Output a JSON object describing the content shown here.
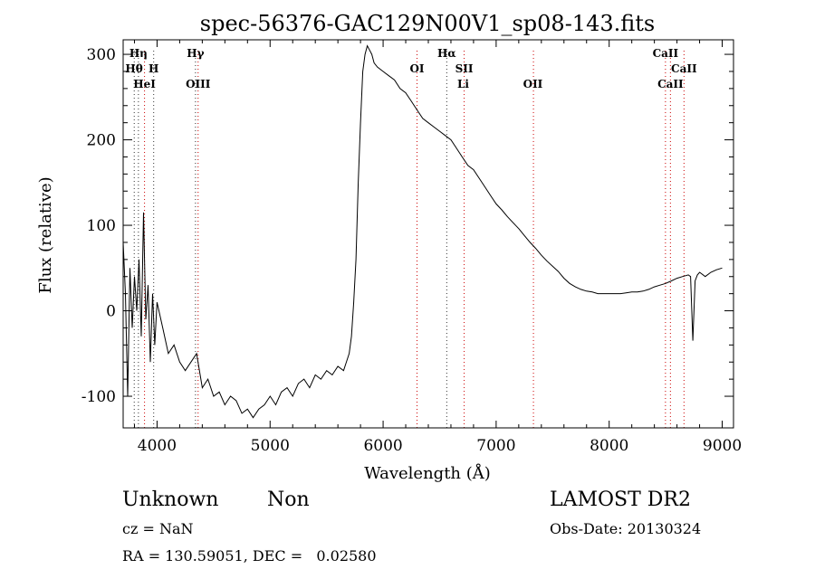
{
  "chart_data": {
    "type": "line",
    "title": "spec-56376-GAC129N00V1_sp08-143.fits",
    "xlabel": "Wavelength (Å)",
    "ylabel": "Flux (relative)",
    "xlim": [
      3700,
      9100
    ],
    "ylim": [
      -137,
      317
    ],
    "xticks": [
      4000,
      5000,
      6000,
      7000,
      8000,
      9000
    ],
    "yticks": [
      -100,
      0,
      100,
      200,
      300
    ],
    "grid": false,
    "line_color": "#000000",
    "series": [
      {
        "x": [
          3700,
          3720,
          3740,
          3760,
          3780,
          3800,
          3820,
          3840,
          3860,
          3880,
          3900,
          3920,
          3940,
          3960,
          3980,
          4000,
          4050,
          4100,
          4150,
          4200,
          4250,
          4300,
          4350,
          4400,
          4450,
          4500,
          4550,
          4600,
          4650,
          4700,
          4750,
          4800,
          4850,
          4900,
          4950,
          5000,
          5050,
          5100,
          5150,
          5200,
          5250,
          5300,
          5350,
          5400,
          5450,
          5500,
          5550,
          5600,
          5650,
          5700,
          5720,
          5740,
          5760,
          5780,
          5800,
          5820,
          5840,
          5860,
          5880,
          5900,
          5920,
          5950,
          6000,
          6050,
          6100,
          6150,
          6200,
          6250,
          6300,
          6350,
          6400,
          6450,
          6500,
          6550,
          6600,
          6650,
          6700,
          6750,
          6800,
          6850,
          6900,
          6950,
          7000,
          7050,
          7100,
          7150,
          7200,
          7250,
          7300,
          7350,
          7400,
          7450,
          7500,
          7550,
          7600,
          7650,
          7700,
          7750,
          7800,
          7850,
          7900,
          7950,
          8000,
          8050,
          8100,
          8150,
          8200,
          8250,
          8300,
          8350,
          8400,
          8450,
          8500,
          8550,
          8600,
          8650,
          8700,
          8720,
          8740,
          8760,
          8780,
          8800,
          8850,
          8900,
          8950,
          9000
        ],
        "y": [
          80,
          20,
          -100,
          50,
          -20,
          40,
          0,
          60,
          -30,
          115,
          -10,
          30,
          -60,
          20,
          -40,
          10,
          -20,
          -50,
          -40,
          -60,
          -70,
          -60,
          -50,
          -90,
          -80,
          -100,
          -95,
          -110,
          -100,
          -105,
          -120,
          -115,
          -125,
          -115,
          -110,
          -100,
          -110,
          -95,
          -90,
          -100,
          -85,
          -80,
          -90,
          -75,
          -80,
          -70,
          -75,
          -65,
          -70,
          -50,
          -30,
          10,
          60,
          150,
          220,
          280,
          300,
          310,
          305,
          300,
          290,
          285,
          280,
          275,
          270,
          260,
          255,
          245,
          235,
          225,
          220,
          215,
          210,
          205,
          200,
          190,
          180,
          170,
          165,
          155,
          145,
          135,
          125,
          118,
          110,
          103,
          96,
          88,
          80,
          73,
          65,
          58,
          52,
          46,
          38,
          32,
          28,
          25,
          23,
          22,
          20,
          20,
          20,
          20,
          20,
          21,
          22,
          22,
          23,
          25,
          28,
          30,
          32,
          35,
          38,
          40,
          42,
          40,
          -35,
          35,
          42,
          45,
          40,
          45,
          48,
          50
        ]
      }
    ],
    "line_labels": [
      {
        "text": "Hη",
        "x": 3835,
        "row": 1
      },
      {
        "text": "Hθ",
        "x": 3797,
        "row": 2
      },
      {
        "text": "H",
        "x": 3970,
        "row": 2
      },
      {
        "text": "HeI",
        "x": 3889,
        "row": 3
      },
      {
        "text": "Hγ",
        "x": 4340,
        "row": 1
      },
      {
        "text": "OIII",
        "x": 4363,
        "row": 3
      },
      {
        "text": "Hα",
        "x": 6563,
        "row": 1
      },
      {
        "text": "OI",
        "x": 6300,
        "row": 2
      },
      {
        "text": "SII",
        "x": 6717,
        "row": 2
      },
      {
        "text": "Li",
        "x": 6708,
        "row": 3
      },
      {
        "text": "OII",
        "x": 7325,
        "row": 3
      },
      {
        "text": "CaII",
        "x": 8498,
        "row": 1
      },
      {
        "text": "CaII",
        "x": 8662,
        "row": 2
      },
      {
        "text": "CaII",
        "x": 8542,
        "row": 3
      }
    ],
    "line_markers": [
      {
        "x": 3798,
        "color": "#333333"
      },
      {
        "x": 3835,
        "color": "#333333"
      },
      {
        "x": 3889,
        "color": "#cc0000"
      },
      {
        "x": 3970,
        "color": "#333333"
      },
      {
        "x": 4340,
        "color": "#333333"
      },
      {
        "x": 4363,
        "color": "#cc0000"
      },
      {
        "x": 6300,
        "color": "#cc0000"
      },
      {
        "x": 6563,
        "color": "#333333"
      },
      {
        "x": 6717,
        "color": "#cc0000"
      },
      {
        "x": 7330,
        "color": "#cc0000"
      },
      {
        "x": 8498,
        "color": "#cc0000"
      },
      {
        "x": 8542,
        "color": "#cc0000"
      },
      {
        "x": 8662,
        "color": "#cc0000"
      }
    ]
  },
  "info": {
    "class": "Unknown",
    "subclass": "Non",
    "survey": "LAMOST DR2",
    "cz": "cz = NaN",
    "obs_date": "Obs-Date: 20130324",
    "radec": "RA = 130.59051, DEC =   0.02580"
  }
}
